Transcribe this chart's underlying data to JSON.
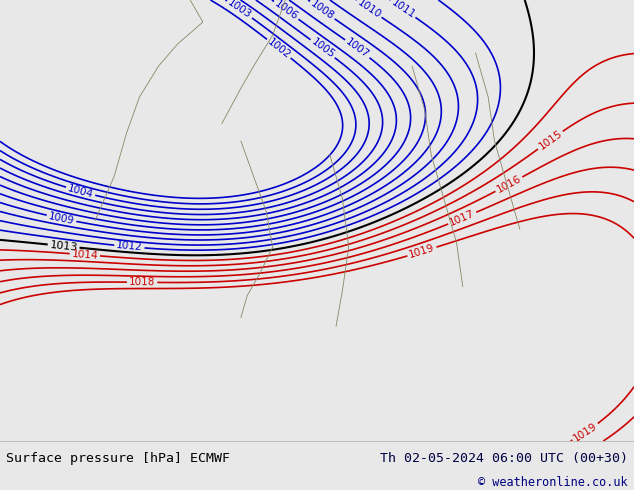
{
  "title_left": "Surface pressure [hPa] ECMWF",
  "title_right": "Th 02-05-2024 06:00 UTC (00+30)",
  "copyright": "© weatheronline.co.uk",
  "bg_color": "#c8e6c8",
  "map_bg": "#b8deb8",
  "bottom_bar_color": "#e8e8e8",
  "title_color": "#000000",
  "right_title_color": "#000040",
  "copyright_color": "#000080",
  "figsize": [
    6.34,
    4.9
  ],
  "dpi": 100,
  "bottom_bar_height": 0.1,
  "isobar_blue_color": "#0000cc",
  "isobar_black_color": "#000000",
  "isobar_red_color": "#cc0000",
  "label_fontsize": 7.5,
  "title_fontsize": 9.5,
  "copyright_fontsize": 8.5
}
